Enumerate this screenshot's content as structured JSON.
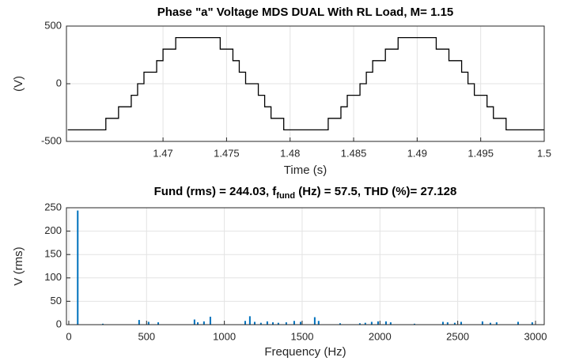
{
  "chart_data": [
    {
      "type": "line",
      "title": "Phase \"a\" Voltage MDS DUAL With RL Load, M= 1.15",
      "xlabel": "Time (s)",
      "ylabel": "(V)",
      "step": "post",
      "color": "#000000",
      "grid": true,
      "x": [
        1.4625,
        1.463,
        1.4635,
        1.464,
        1.4645,
        1.465,
        1.4655,
        1.466,
        1.4665,
        1.467,
        1.4675,
        1.468,
        1.4685,
        1.469,
        1.4695,
        1.47,
        1.4705,
        1.471,
        1.4715,
        1.472,
        1.4725,
        1.473,
        1.4735,
        1.474,
        1.4745,
        1.475,
        1.4755,
        1.476,
        1.4765,
        1.477,
        1.4775,
        1.478,
        1.4785,
        1.479,
        1.4795,
        1.48,
        1.4805,
        1.481,
        1.4815,
        1.482,
        1.4825,
        1.483,
        1.4835,
        1.484,
        1.4845,
        1.485,
        1.4855,
        1.486,
        1.4865,
        1.487,
        1.4875,
        1.488,
        1.4885,
        1.489,
        1.4895,
        1.49,
        1.4905,
        1.491,
        1.4915,
        1.492,
        1.4925,
        1.493,
        1.4935,
        1.494,
        1.4945,
        1.495,
        1.4955,
        1.496,
        1.4965,
        1.497,
        1.4975,
        1.498,
        1.4985,
        1.499,
        1.4995,
        1.5
      ],
      "values": [
        -400,
        -400,
        -400,
        -400,
        -400,
        -400,
        -300,
        -300,
        -200,
        -200,
        -100,
        0,
        100,
        100,
        200,
        300,
        300,
        400,
        400,
        400,
        400,
        400,
        400,
        400,
        300,
        300,
        200,
        100,
        0,
        0,
        -100,
        -200,
        -300,
        -300,
        -400,
        -400,
        -400,
        -400,
        -400,
        -400,
        -400,
        -300,
        -300,
        -200,
        -100,
        -100,
        0,
        100,
        200,
        200,
        300,
        300,
        400,
        400,
        400,
        400,
        400,
        400,
        300,
        300,
        200,
        200,
        100,
        0,
        -100,
        -100,
        -200,
        -300,
        -300,
        -400,
        -400,
        -400,
        -400,
        -400,
        -400,
        -400
      ],
      "xlim": [
        1.4624,
        1.5
      ],
      "xticks": [
        1.47,
        1.475,
        1.48,
        1.485,
        1.49,
        1.495,
        1.5
      ],
      "ylim": [
        -500,
        500
      ],
      "yticks": [
        -500,
        0,
        500
      ]
    },
    {
      "type": "bar",
      "title": "Fund (rms) = 244.03, f",
      "title_subscript": "fund",
      "title_rest": " (Hz) = 57.5, THD (%)= 27.128",
      "xlabel": "Frequency (Hz)",
      "ylabel": "V (rms)",
      "color": "#0072bd",
      "grid": true,
      "x": [
        57.5,
        219,
        452,
        513,
        575,
        808,
        829,
        869,
        910,
        1134,
        1164,
        1195,
        1235,
        1276,
        1312,
        1347,
        1398,
        1449,
        1490,
        1581,
        1606,
        1744,
        1871,
        1906,
        1947,
        1988,
        2039,
        2069,
        2222,
        2405,
        2435,
        2481,
        2522,
        2659,
        2710,
        2750,
        2888,
        2979
      ],
      "values": [
        244.03,
        2,
        10,
        6,
        5,
        11,
        5,
        7,
        17,
        8,
        18,
        6,
        4,
        7,
        5,
        4,
        5,
        8,
        6,
        16,
        8,
        3,
        3,
        4,
        6,
        7,
        7,
        5,
        2,
        6,
        5,
        4,
        6,
        7,
        4,
        5,
        6,
        5
      ],
      "xlim": [
        -15,
        3056
      ],
      "xticks": [
        0,
        500,
        1000,
        1500,
        2000,
        2500,
        3000
      ],
      "ylim": [
        0,
        250
      ],
      "yticks": [
        0,
        50,
        100,
        150,
        200,
        250
      ]
    }
  ]
}
